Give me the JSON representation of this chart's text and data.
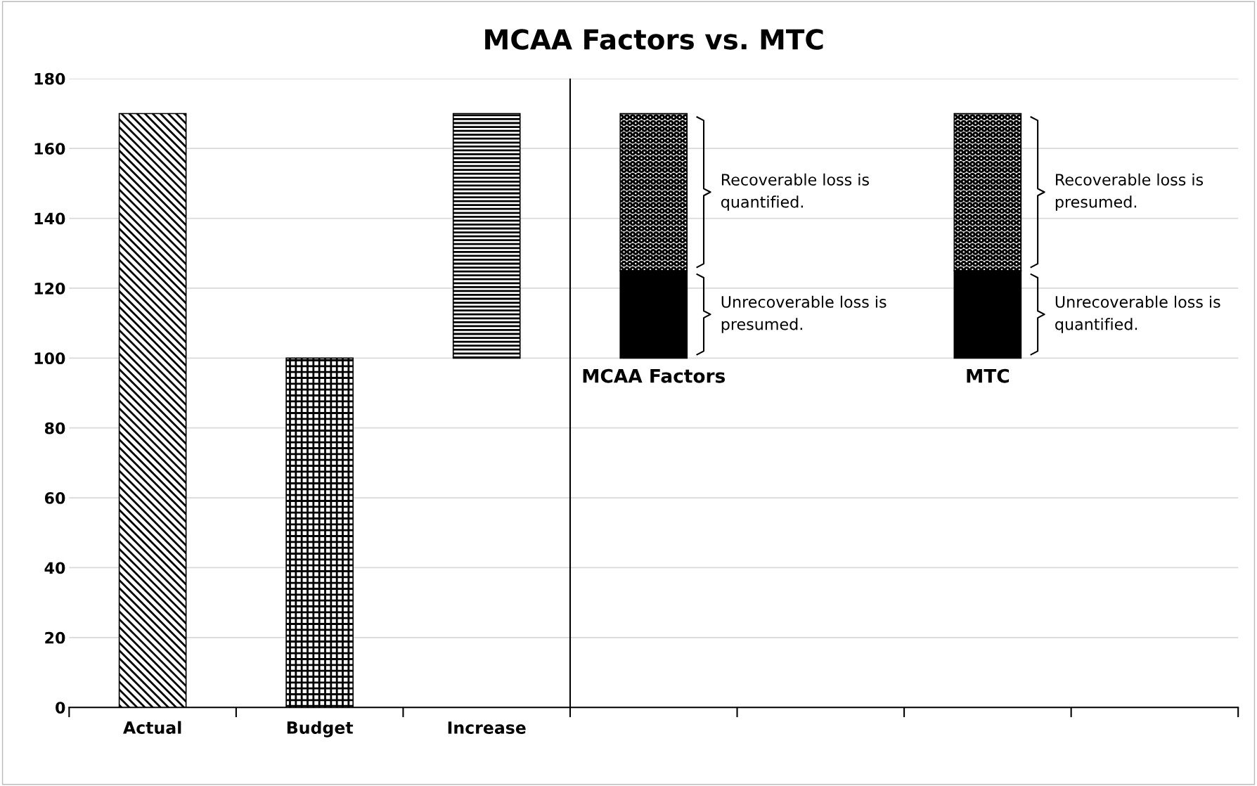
{
  "chart_data": {
    "type": "bar",
    "title": "MCAA Factors vs. MTC",
    "categories": [
      "Actual",
      "Budget",
      "Increase",
      null,
      null,
      null,
      null
    ],
    "stacked": true,
    "series": [
      {
        "colors": [
          "#000000",
          "#000000",
          "#000000",
          "#000000",
          null,
          "#000000",
          null
        ],
        "values": [
          170,
          100,
          70,
          25,
          null,
          25,
          null
        ],
        "base": [
          0,
          0,
          100,
          100,
          null,
          100,
          null
        ]
      },
      {
        "color": "#000000",
        "values": [
          null,
          null,
          null,
          45,
          null,
          45,
          null
        ]
      }
    ],
    "ylim": [
      0,
      180
    ],
    "yticks": [
      0,
      20,
      40,
      60,
      80,
      100,
      120,
      140,
      160,
      180
    ],
    "grid": "y",
    "annotations": [
      "MCAA Factors",
      "Recoverable loss is\nquantified.",
      "Unrecoverable loss is\npresumed.",
      "MTC",
      "Recoverable loss is\npresumed.",
      "Unrecoverable loss is\nquantified."
    ]
  }
}
